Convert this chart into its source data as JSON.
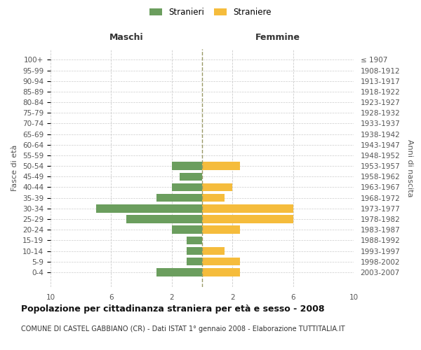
{
  "age_groups": [
    "100+",
    "95-99",
    "90-94",
    "85-89",
    "80-84",
    "75-79",
    "70-74",
    "65-69",
    "60-64",
    "55-59",
    "50-54",
    "45-49",
    "40-44",
    "35-39",
    "30-34",
    "25-29",
    "20-24",
    "15-19",
    "10-14",
    "5-9",
    "0-4"
  ],
  "birth_years": [
    "≤ 1907",
    "1908-1912",
    "1913-1917",
    "1918-1922",
    "1923-1927",
    "1928-1932",
    "1933-1937",
    "1938-1942",
    "1943-1947",
    "1948-1952",
    "1953-1957",
    "1958-1962",
    "1963-1967",
    "1968-1972",
    "1973-1977",
    "1978-1982",
    "1983-1987",
    "1988-1992",
    "1993-1997",
    "1998-2002",
    "2003-2007"
  ],
  "maschi": [
    0,
    0,
    0,
    0,
    0,
    0,
    0,
    0,
    0,
    0,
    2,
    1.5,
    2,
    3,
    7,
    5,
    2,
    1,
    1,
    1,
    3
  ],
  "femmine": [
    0,
    0,
    0,
    0,
    0,
    0,
    0,
    0,
    0,
    0,
    2.5,
    0,
    2,
    1.5,
    6,
    6,
    2.5,
    0,
    1.5,
    2.5,
    2.5
  ],
  "male_color": "#6b9e5e",
  "female_color": "#f5bc3c",
  "center_line_color": "#999966",
  "grid_color": "#cccccc",
  "grid_style": "--",
  "background_color": "#ffffff",
  "title": "Popolazione per cittadinanza straniera per età e sesso - 2008",
  "subtitle": "COMUNE DI CASTEL GABBIANO (CR) - Dati ISTAT 1° gennaio 2008 - Elaborazione TUTTITALIA.IT",
  "col_label_left": "Maschi",
  "col_label_right": "Femmine",
  "ylabel_left": "Fasce di età",
  "ylabel_right": "Anni di nascita",
  "legend_male": "Stranieri",
  "legend_female": "Straniere",
  "xlim": 10,
  "bar_height": 0.75,
  "title_fontsize": 9,
  "subtitle_fontsize": 7,
  "tick_fontsize": 7.5,
  "label_fontsize": 9
}
